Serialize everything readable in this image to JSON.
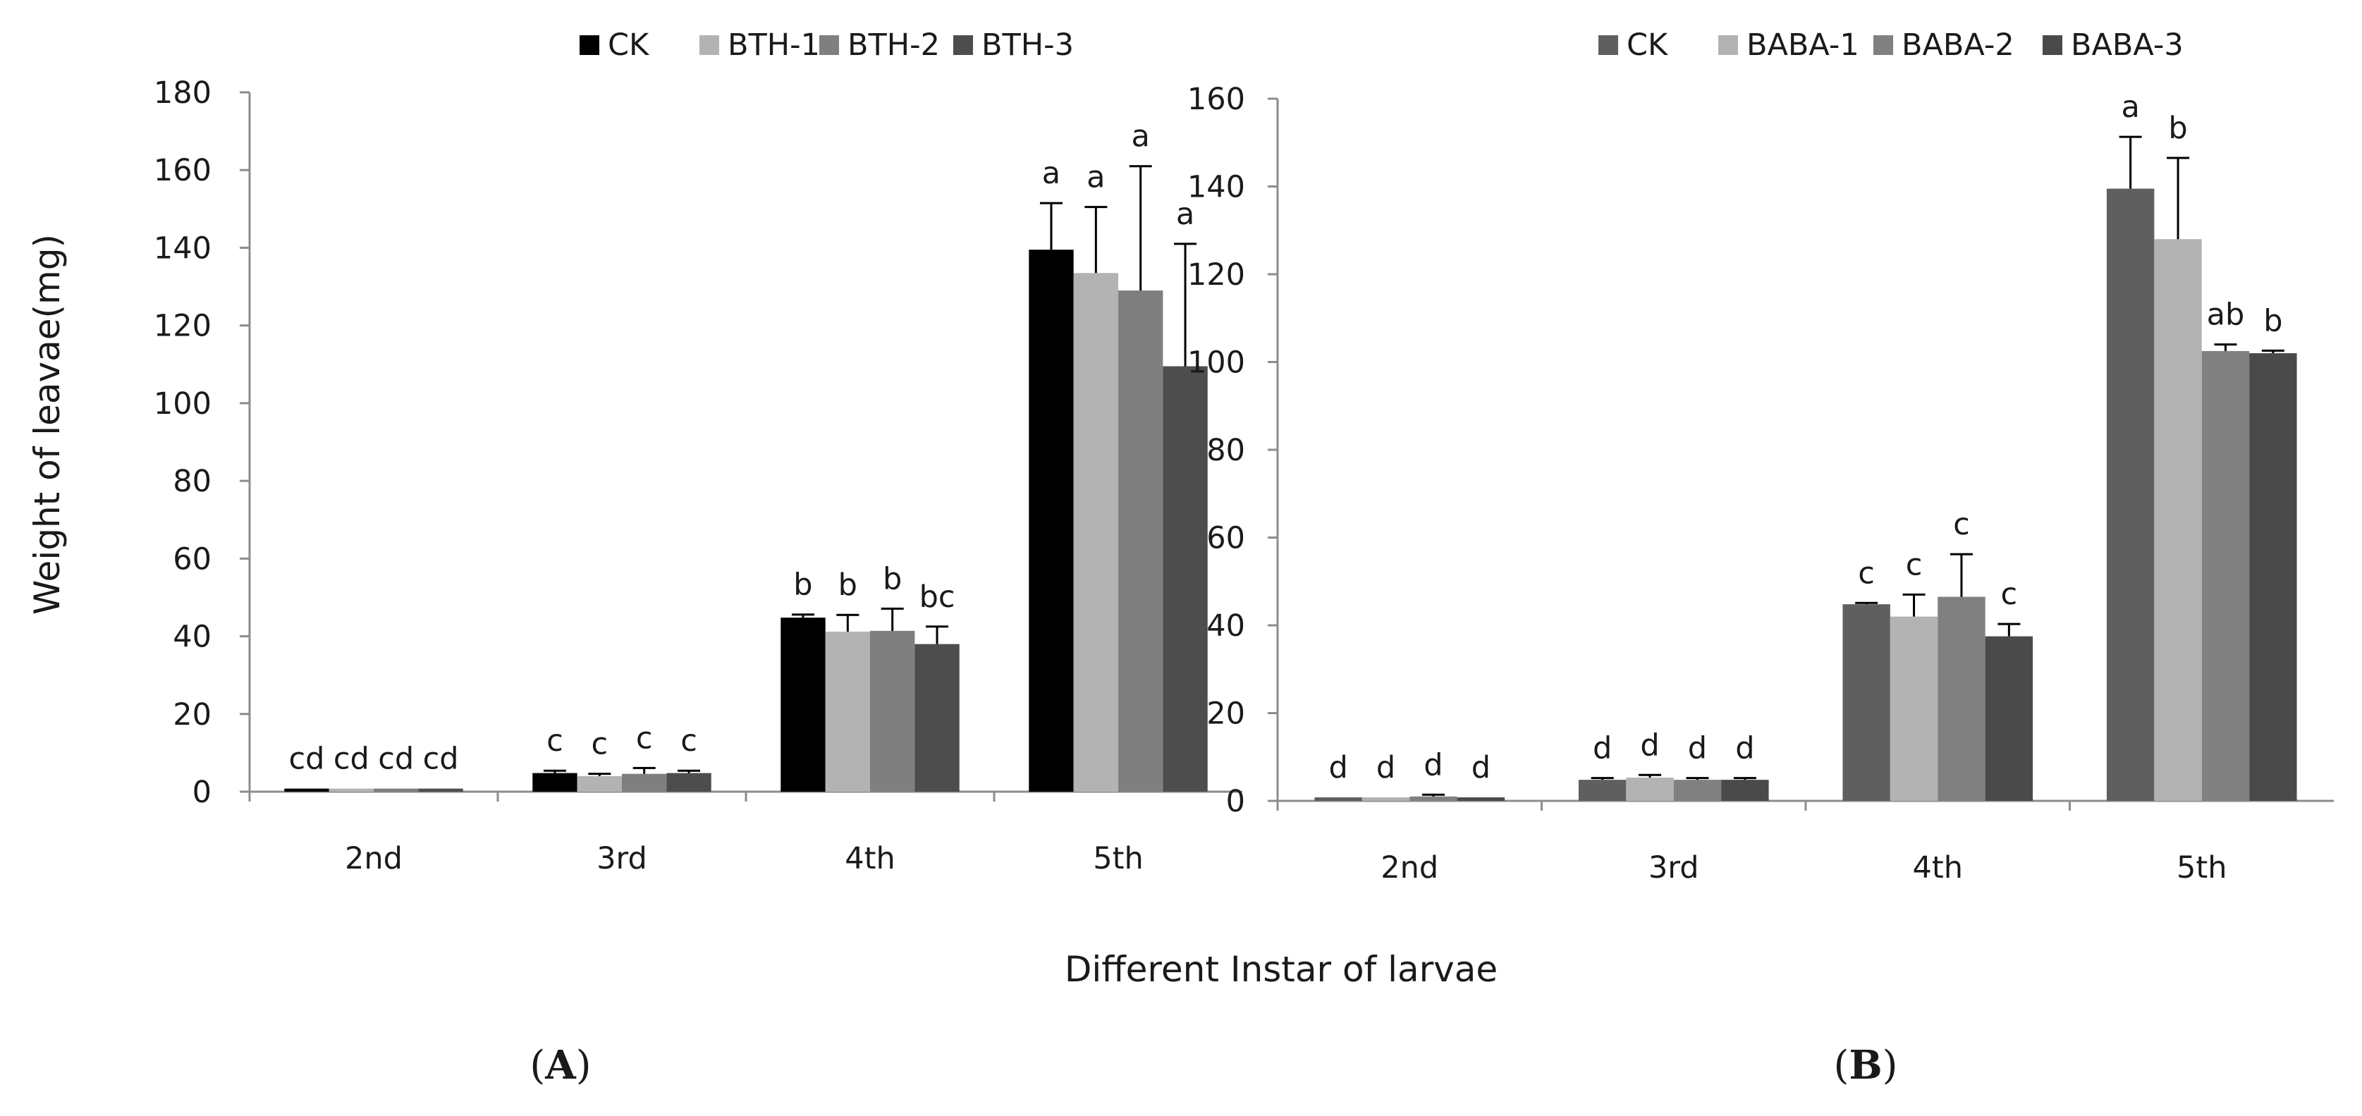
{
  "axis_titles": {
    "y": "Weight of leavae(mg)",
    "x": "Different Instar of larvae"
  },
  "chart_data": [
    {
      "type": "bar",
      "panel_label_prefix": "(",
      "panel_label_letter": "A",
      "panel_label_suffix": ")",
      "categories": [
        "2nd",
        "3rd",
        "4th",
        "5th"
      ],
      "ylim": [
        0,
        180
      ],
      "yticks": [
        0,
        20,
        40,
        60,
        80,
        100,
        120,
        140,
        160,
        180
      ],
      "grid": false,
      "legend_position": "top",
      "xlabel": "Different Instar of larvae",
      "ylabel": "Weight of leavae(mg)",
      "series": [
        {
          "name": "CK",
          "color": "#000000",
          "values": [
            0.8,
            4.8,
            44.8,
            139.5
          ],
          "errors": [
            0,
            0.6,
            0.8,
            12.0
          ],
          "letters": [
            "cd",
            "c",
            "b",
            "a"
          ]
        },
        {
          "name": "BTH-1",
          "color": "#b3b3b3",
          "values": [
            0.8,
            4.0,
            41.2,
            133.5
          ],
          "errors": [
            0,
            0.6,
            4.3,
            17.0
          ],
          "letters": [
            "cd",
            "c",
            "b",
            "a"
          ]
        },
        {
          "name": "BTH-2",
          "color": "#7f7f7f",
          "values": [
            0.8,
            4.6,
            41.4,
            129.0
          ],
          "errors": [
            0,
            1.5,
            5.7,
            32.0
          ],
          "letters": [
            "cd",
            "c",
            "b",
            "a"
          ]
        },
        {
          "name": "BTH-3",
          "color": "#4d4d4d",
          "values": [
            0.8,
            4.8,
            38.0,
            109.5
          ],
          "errors": [
            0,
            0.6,
            4.5,
            31.5
          ],
          "letters": [
            "cd",
            "c",
            "bc",
            "a"
          ]
        }
      ]
    },
    {
      "type": "bar",
      "panel_label_prefix": "(",
      "panel_label_letter": "B",
      "panel_label_suffix": ")",
      "categories": [
        "2nd",
        "3rd",
        "4th",
        "5th"
      ],
      "ylim": [
        0,
        160
      ],
      "yticks": [
        0,
        20,
        40,
        60,
        80,
        100,
        120,
        140,
        160
      ],
      "grid": false,
      "legend_position": "top",
      "xlabel": "Different Instar of larvae",
      "ylabel": "Weight of leavae(mg)",
      "series": [
        {
          "name": "CK",
          "color": "#5f5f5f",
          "values": [
            0.8,
            4.8,
            44.8,
            139.5
          ],
          "errors": [
            0,
            0.4,
            0.3,
            11.8
          ],
          "letters": [
            "d",
            "d",
            "c",
            "a"
          ]
        },
        {
          "name": "BABA-1",
          "color": "#b3b3b3",
          "values": [
            0.8,
            5.3,
            42.0,
            128.0
          ],
          "errors": [
            0,
            0.6,
            5.0,
            18.5
          ],
          "letters": [
            "d",
            "d",
            "c",
            "b"
          ]
        },
        {
          "name": "BABA-2",
          "color": "#808080",
          "values": [
            1.0,
            4.8,
            46.5,
            102.5
          ],
          "errors": [
            0.4,
            0.4,
            9.7,
            1.5
          ],
          "letters": [
            "d",
            "d",
            "c",
            "ab"
          ]
        },
        {
          "name": "BABA-3",
          "color": "#4a4a4a",
          "values": [
            0.8,
            4.8,
            37.5,
            102.0
          ],
          "errors": [
            0,
            0.4,
            2.8,
            0.6
          ],
          "letters": [
            "d",
            "d",
            "c",
            "b"
          ]
        }
      ]
    }
  ]
}
